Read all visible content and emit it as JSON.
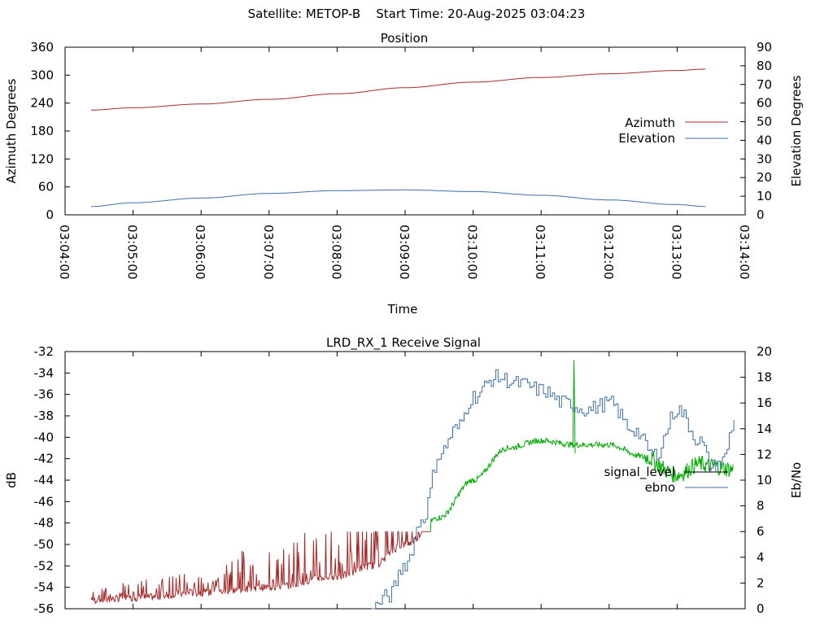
{
  "header": {
    "title": "Satellite: METOP-B    Start Time: 20-Aug-2025 03:04:23"
  },
  "chart_data": [
    {
      "type": "line",
      "title": "Position",
      "xlabel": "Time",
      "ylabel": "Azimuth Degrees",
      "y2label": "Elevation Degrees",
      "x_ticks": [
        "03:04:00",
        "03:05:00",
        "03:06:00",
        "03:07:00",
        "03:08:00",
        "03:09:00",
        "03:10:00",
        "03:11:00",
        "03:12:00",
        "03:13:00",
        "03:14:00"
      ],
      "y_ticks": [
        0,
        60,
        120,
        180,
        240,
        300,
        360
      ],
      "y2_ticks": [
        0,
        10,
        20,
        30,
        40,
        50,
        60,
        70,
        80,
        90
      ],
      "ylim": [
        0,
        360
      ],
      "y2lim": [
        0,
        90
      ],
      "legend": "right",
      "series": [
        {
          "name": "Azimuth",
          "axis": "y",
          "color": "#a52a2a",
          "x": [
            "03:04:23",
            "03:05:00",
            "03:06:00",
            "03:07:00",
            "03:08:00",
            "03:09:00",
            "03:10:00",
            "03:11:00",
            "03:12:00",
            "03:13:00",
            "03:13:25"
          ],
          "values": [
            225,
            230,
            238,
            248,
            260,
            273,
            285,
            295,
            303,
            310,
            313
          ]
        },
        {
          "name": "Elevation",
          "axis": "y2",
          "color": "#3c6ea8",
          "x": [
            "03:04:23",
            "03:05:00",
            "03:06:00",
            "03:07:00",
            "03:08:00",
            "03:09:00",
            "03:10:00",
            "03:11:00",
            "03:12:00",
            "03:13:00",
            "03:13:25"
          ],
          "values": [
            4.5,
            6.5,
            9.0,
            11.5,
            13.0,
            13.4,
            12.5,
            10.5,
            8.0,
            5.5,
            4.5
          ]
        }
      ]
    },
    {
      "type": "line",
      "title": "LRD_RX_1 Receive Signal",
      "xlabel": "",
      "ylabel": "dB",
      "y2label": "Eb/No",
      "y_ticks": [
        -32,
        -34,
        -36,
        -38,
        -40,
        -42,
        -44,
        -46,
        -48,
        -50,
        -52,
        -54,
        -56
      ],
      "y2_ticks": [
        0,
        2,
        4,
        6,
        8,
        10,
        12,
        14,
        16,
        18,
        20
      ],
      "ylim": [
        -56,
        -32
      ],
      "y2lim": [
        0,
        20
      ],
      "legend": "right",
      "series": [
        {
          "name": "signal_level",
          "axis": "y",
          "color_weak": "#a52a2a",
          "color_strong": "#00aa00",
          "x_seconds": [
            23,
            60,
            120,
            180,
            240,
            270,
            300,
            330,
            360,
            390,
            420,
            450,
            480,
            510,
            540,
            560,
            570,
            590
          ],
          "values": [
            -55.2,
            -55.0,
            -54.5,
            -54.0,
            -53.0,
            -52.0,
            -50.0,
            -47.5,
            -44.0,
            -41.0,
            -40.3,
            -40.7,
            -40.7,
            -41.8,
            -43.5,
            -42.5,
            -42.7,
            -43.0
          ]
        },
        {
          "name": "ebno",
          "axis": "y2",
          "color": "#3c6ea8",
          "x_seconds": [
            270,
            285,
            300,
            315,
            330,
            345,
            360,
            380,
            400,
            420,
            440,
            460,
            480,
            500,
            520,
            540,
            560,
            570,
            580,
            590
          ],
          "values": [
            0.0,
            1.0,
            3.5,
            7.0,
            12.0,
            14.0,
            16.5,
            18.0,
            17.5,
            17.0,
            16.0,
            15.5,
            16.0,
            14.0,
            12.0,
            15.5,
            13.0,
            11.0,
            11.5,
            14.5
          ]
        }
      ]
    }
  ]
}
